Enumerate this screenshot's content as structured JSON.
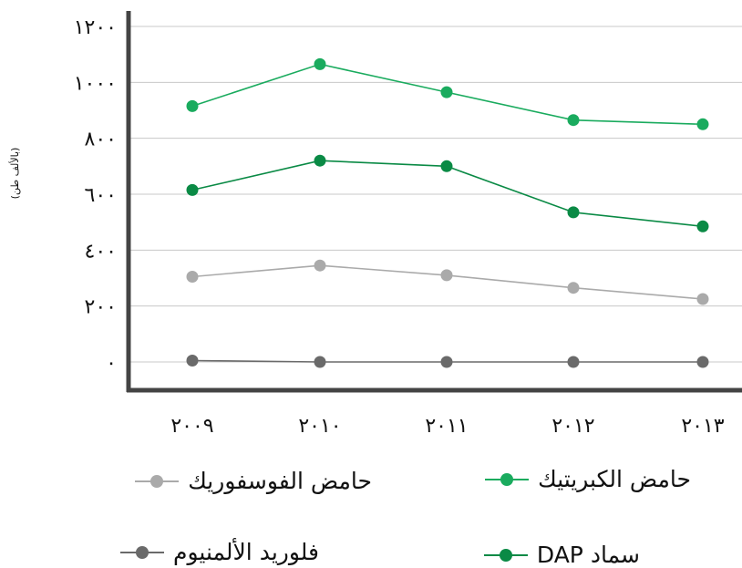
{
  "chart_data": {
    "type": "line",
    "ylabel": "(بالألف طن)",
    "yticks": [
      "٠",
      "٢٠٠",
      "٤٠٠",
      "٦٠٠",
      "٨٠٠",
      "١٠٠٠",
      "١٢٠٠"
    ],
    "ylim": [
      0,
      1200
    ],
    "categories": [
      "٢٠٠٩",
      "٢٠١٠",
      "٢٠١١",
      "٢٠١٢",
      "٢٠١٣"
    ],
    "grid": true,
    "legend_position": "bottom",
    "series": [
      {
        "name": "حامض الكبريتيك",
        "color": "#1aab5e",
        "values": [
          915,
          1065,
          965,
          865,
          850
        ]
      },
      {
        "name": "سماد DAP",
        "color": "#0a8a45",
        "values": [
          615,
          720,
          700,
          535,
          485
        ]
      },
      {
        "name": "حامض الفوسفوريك",
        "color": "#aaaaaa",
        "values": [
          305,
          345,
          310,
          265,
          225
        ]
      },
      {
        "name": "فلوريد الألمنيوم",
        "color": "#6a6a6a",
        "values": [
          5,
          0,
          0,
          0,
          0
        ]
      }
    ]
  }
}
